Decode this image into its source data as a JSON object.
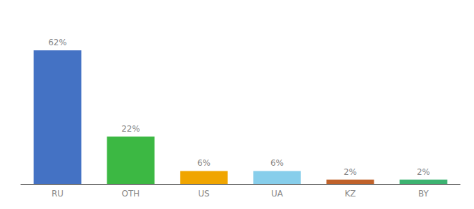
{
  "chart_data": {
    "type": "bar",
    "categories": [
      "RU",
      "OTH",
      "US",
      "UA",
      "KZ",
      "BY"
    ],
    "values": [
      62,
      22,
      6,
      6,
      2,
      2
    ],
    "value_labels": [
      "62%",
      "22%",
      "6%",
      "6%",
      "2%",
      "2%"
    ],
    "colors": [
      "#4472c4",
      "#3cb843",
      "#f0a500",
      "#87ceeb",
      "#c0622a",
      "#3cb371"
    ],
    "ylim": [
      0,
      75.64
    ],
    "data_labels": true,
    "tick_labels": "x",
    "grid": false
  }
}
